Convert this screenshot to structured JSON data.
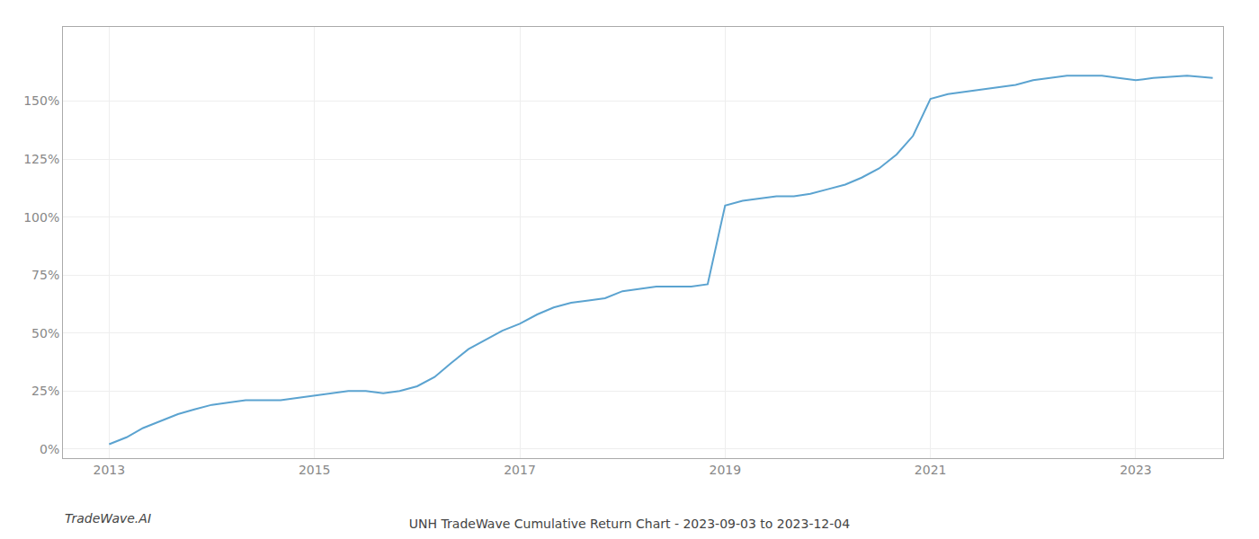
{
  "chart_data": {
    "type": "line",
    "title": "UNH TradeWave Cumulative Return Chart - 2023-09-03 to 2023-12-04",
    "annotations": [
      "TradeWave.AI"
    ],
    "x": [
      2013.0,
      2013.17,
      2013.33,
      2013.5,
      2013.67,
      2013.83,
      2014.0,
      2014.17,
      2014.33,
      2014.5,
      2014.67,
      2014.83,
      2015.0,
      2015.17,
      2015.33,
      2015.5,
      2015.67,
      2015.83,
      2016.0,
      2016.17,
      2016.33,
      2016.5,
      2016.67,
      2016.83,
      2017.0,
      2017.17,
      2017.33,
      2017.5,
      2017.67,
      2017.83,
      2018.0,
      2018.17,
      2018.33,
      2018.5,
      2018.67,
      2018.83,
      2019.0,
      2019.17,
      2019.33,
      2019.5,
      2019.67,
      2019.83,
      2020.0,
      2020.17,
      2020.33,
      2020.5,
      2020.67,
      2020.83,
      2021.0,
      2021.17,
      2021.33,
      2021.5,
      2021.67,
      2021.83,
      2022.0,
      2022.17,
      2022.33,
      2022.5,
      2022.67,
      2022.83,
      2023.0,
      2023.17,
      2023.5,
      2023.75
    ],
    "values": [
      0.02,
      0.05,
      0.09,
      0.12,
      0.15,
      0.17,
      0.19,
      0.2,
      0.21,
      0.21,
      0.21,
      0.22,
      0.23,
      0.24,
      0.25,
      0.25,
      0.24,
      0.25,
      0.27,
      0.31,
      0.37,
      0.43,
      0.47,
      0.51,
      0.54,
      0.58,
      0.61,
      0.63,
      0.64,
      0.65,
      0.68,
      0.69,
      0.7,
      0.7,
      0.7,
      0.71,
      1.05,
      1.07,
      1.08,
      1.09,
      1.09,
      1.1,
      1.12,
      1.14,
      1.17,
      1.21,
      1.27,
      1.35,
      1.51,
      1.53,
      1.54,
      1.55,
      1.56,
      1.57,
      1.59,
      1.6,
      1.61,
      1.61,
      1.61,
      1.6,
      1.59,
      1.6,
      1.61,
      1.6
    ],
    "color": "#5ba3d0",
    "xlim": [
      2012.55,
      2023.85
    ],
    "ylim": [
      -0.04,
      1.82
    ],
    "xticks": [
      2013,
      2015,
      2017,
      2019,
      2021,
      2023
    ],
    "yticks": [
      {
        "value": 0.0,
        "label": "0%"
      },
      {
        "value": 0.25,
        "label": "25%"
      },
      {
        "value": 0.5,
        "label": "50%"
      },
      {
        "value": 0.75,
        "label": "75%"
      },
      {
        "value": 1.0,
        "label": "100%"
      },
      {
        "value": 1.25,
        "label": "125%"
      },
      {
        "value": 1.5,
        "label": "150%"
      }
    ],
    "grid": true
  }
}
